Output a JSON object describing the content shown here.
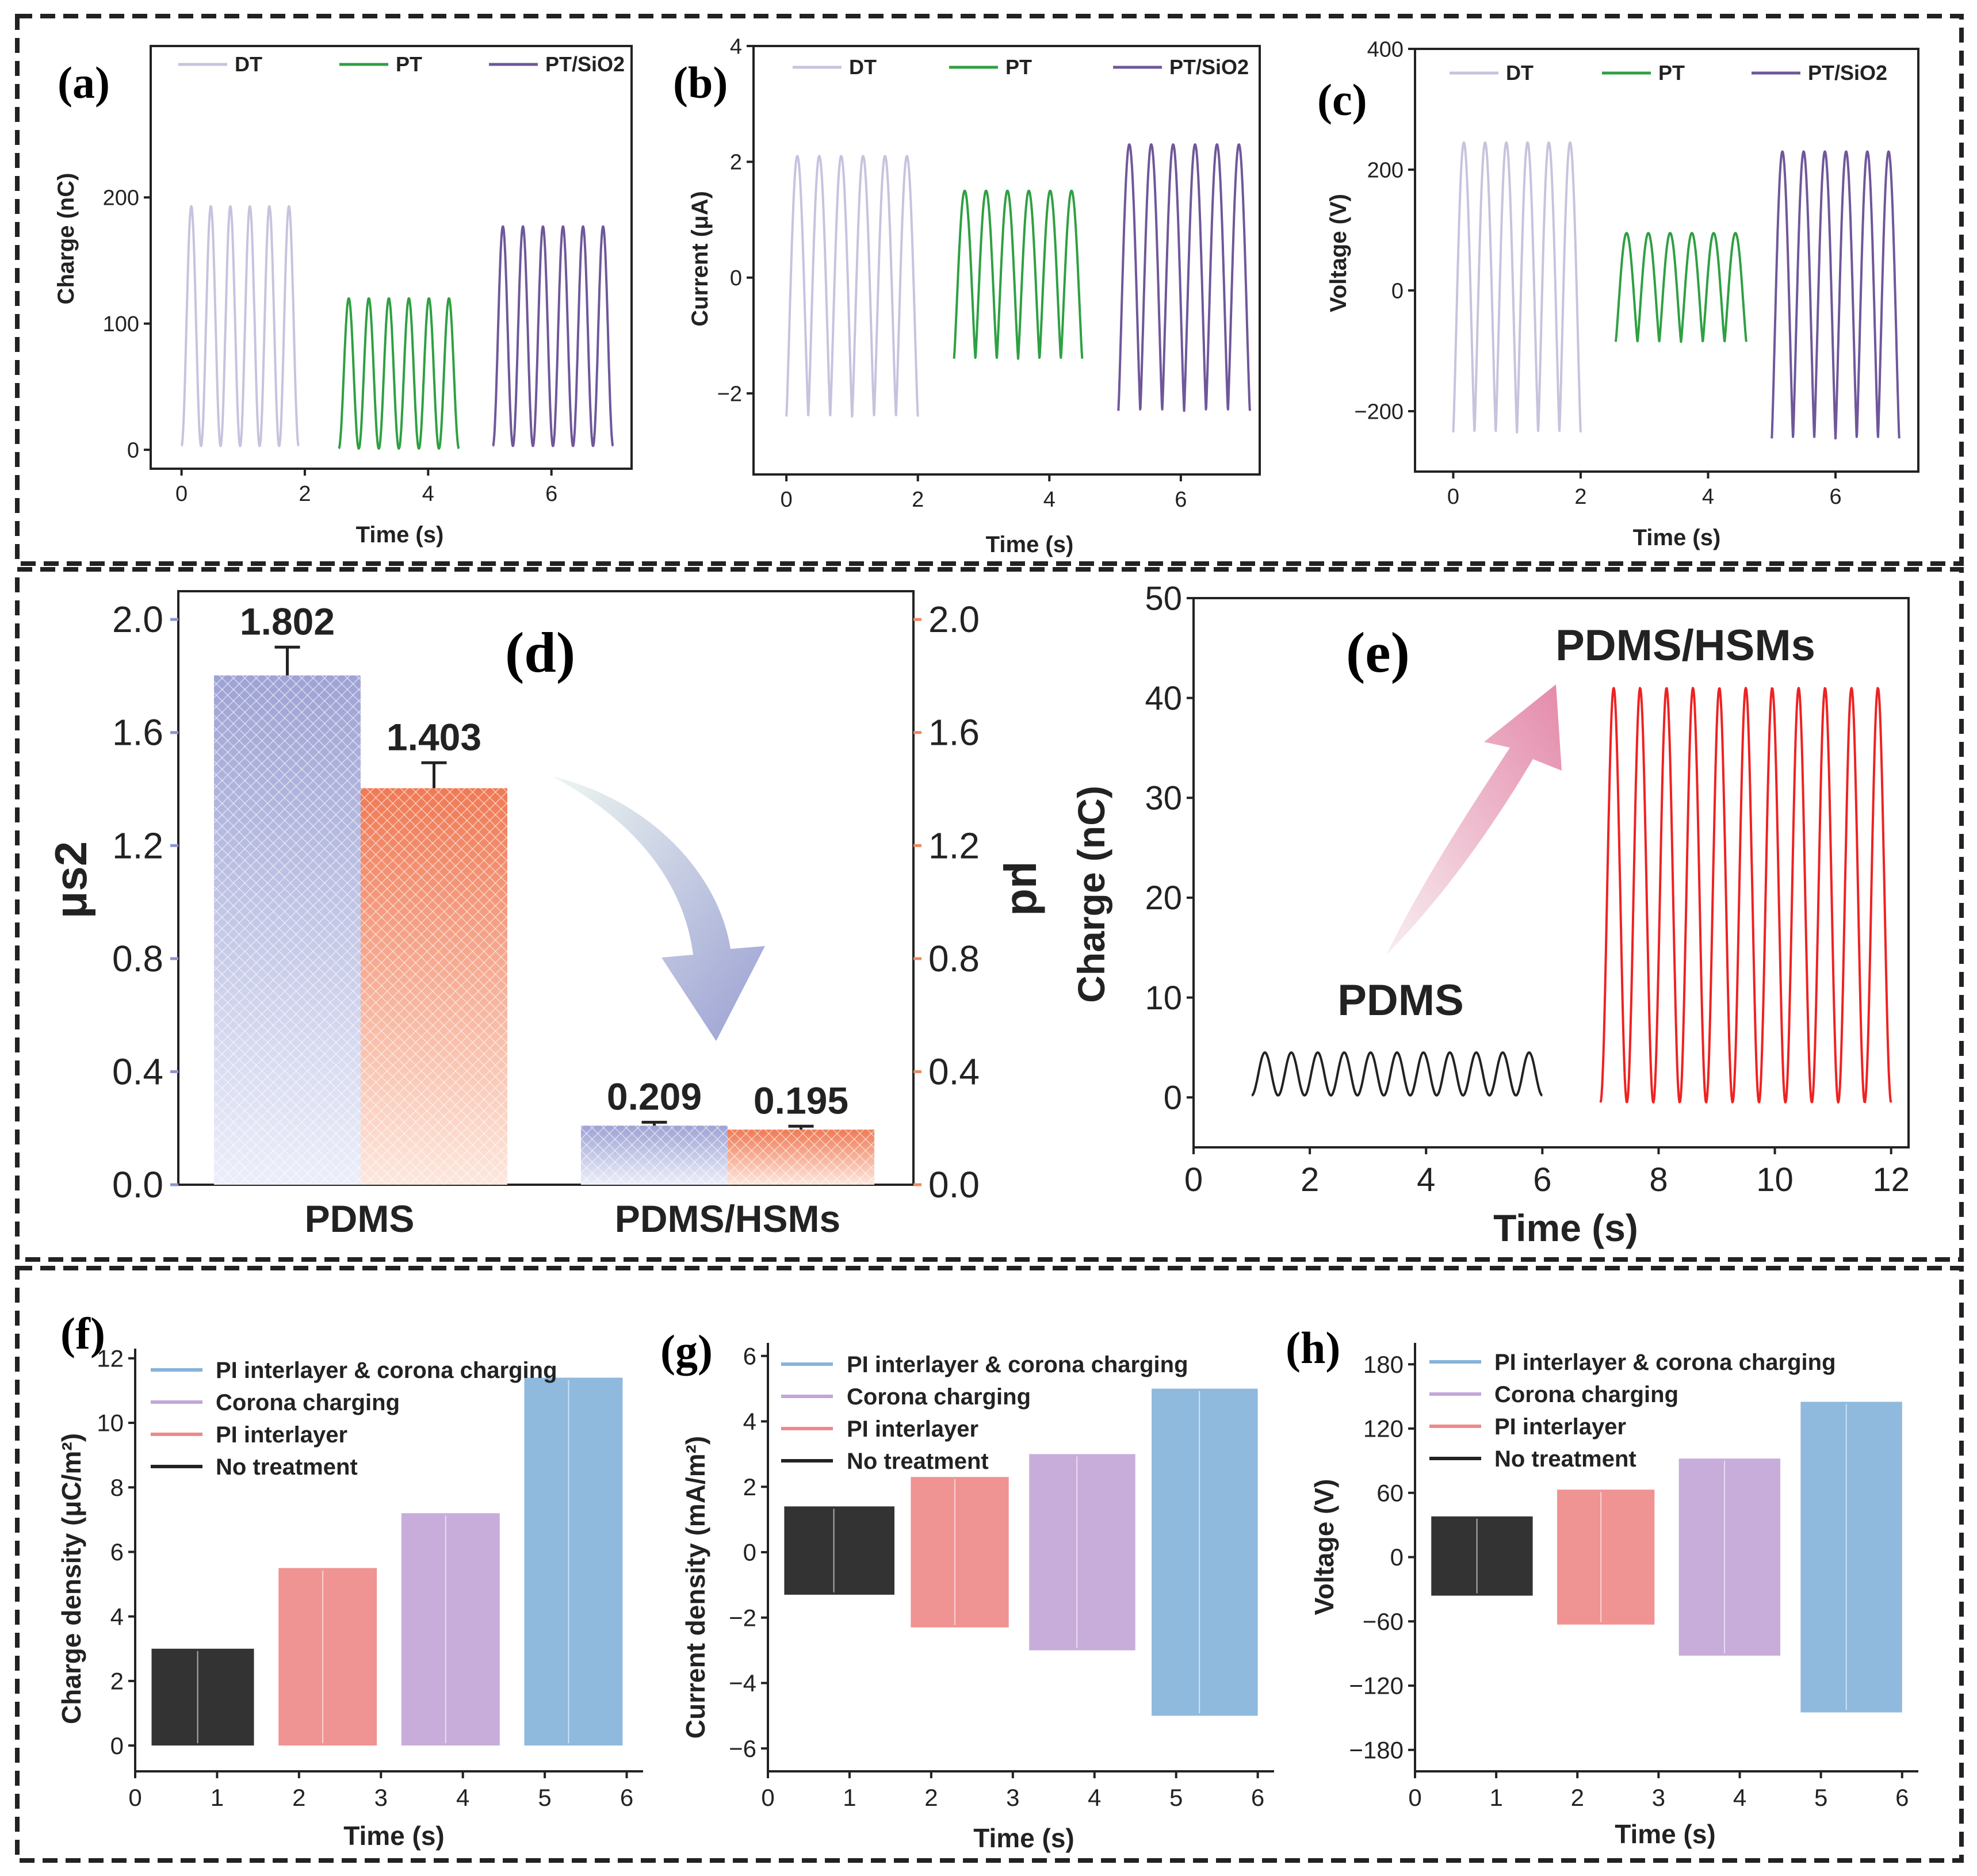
{
  "colors": {
    "dt": "#c9c2de",
    "pt": "#2fa043",
    "ptsio2": "#6f579a",
    "black": "#222222",
    "pink": "#ef8a8a",
    "lilac": "#c3a6d8",
    "blue": "#86b3da",
    "bar_blue": "#9ea3d4",
    "bar_orange": "#ef7a55",
    "axis_blue": "#8d93cf",
    "axis_orange": "#ec8a5f",
    "red": "#ee2222"
  },
  "chart_data": [
    {
      "id": "a",
      "panel_label": "(a)",
      "type": "line",
      "xlabel": "Time (s)",
      "ylabel": "Charge (nC)",
      "xlim": [
        -0.5,
        7.3
      ],
      "ylim": [
        -15,
        320
      ],
      "xticks": [
        0,
        2,
        4,
        6
      ],
      "yticks": [
        0,
        100,
        200
      ],
      "legend": [
        "DT",
        "PT",
        "PT/SiO2"
      ],
      "series": [
        {
          "name": "DT",
          "color_key": "dt",
          "t_start": 0.0,
          "t_end": 1.9,
          "cycles": 6,
          "min": 3,
          "max": 193
        },
        {
          "name": "PT",
          "color_key": "pt",
          "t_start": 2.55,
          "t_end": 4.5,
          "cycles": 6,
          "min": 1,
          "max": 120
        },
        {
          "name": "PT/SiO2",
          "color_key": "ptsio2",
          "t_start": 5.05,
          "t_end": 7.0,
          "cycles": 6,
          "min": 3,
          "max": 177
        }
      ]
    },
    {
      "id": "b",
      "panel_label": "(b)",
      "type": "line",
      "xlabel": "Time (s)",
      "ylabel": "Current (μA)",
      "xlim": [
        -0.5,
        7.2
      ],
      "ylim": [
        -3.4,
        4
      ],
      "xticks": [
        0,
        2,
        4,
        6
      ],
      "yticks": [
        -2,
        0,
        2,
        4
      ],
      "legend": [
        "DT",
        "PT",
        "PT/SiO2"
      ],
      "series": [
        {
          "name": "DT",
          "color_key": "dt",
          "t_start": 0.0,
          "t_end": 2.0,
          "cycles": 6,
          "min": -2.4,
          "max": 2.1
        },
        {
          "name": "PT",
          "color_key": "pt",
          "t_start": 2.55,
          "t_end": 4.5,
          "cycles": 6,
          "min": -1.4,
          "max": 1.5
        },
        {
          "name": "PT/SiO2",
          "color_key": "ptsio2",
          "t_start": 5.05,
          "t_end": 7.05,
          "cycles": 6,
          "min": -2.3,
          "max": 2.3
        }
      ]
    },
    {
      "id": "c",
      "panel_label": "(c)",
      "type": "line",
      "xlabel": "Time (s)",
      "ylabel": "Voltage (V)",
      "xlim": [
        -0.6,
        7.3
      ],
      "ylim": [
        -300,
        400
      ],
      "xticks": [
        0,
        2,
        4,
        6
      ],
      "yticks": [
        -200,
        0,
        200,
        400
      ],
      "legend": [
        "DT",
        "PT",
        "PT/SiO2"
      ],
      "series": [
        {
          "name": "DT",
          "color_key": "dt",
          "t_start": 0.0,
          "t_end": 2.0,
          "cycles": 6,
          "min": -235,
          "max": 245
        },
        {
          "name": "PT",
          "color_key": "pt",
          "t_start": 2.55,
          "t_end": 4.6,
          "cycles": 6,
          "min": -85,
          "max": 95
        },
        {
          "name": "PT/SiO2",
          "color_key": "ptsio2",
          "t_start": 5.0,
          "t_end": 7.0,
          "cycles": 6,
          "min": -245,
          "max": 230
        }
      ]
    },
    {
      "id": "d",
      "panel_label": "(d)",
      "type": "bar",
      "categories": [
        "PDMS",
        "PDMS/HSMs"
      ],
      "ylabel_left": "μs2",
      "ylabel_right": "μd",
      "ylim": [
        0,
        2.1
      ],
      "yticks": [
        "0.0",
        "0.4",
        "0.8",
        "1.2",
        "1.6",
        "2.0"
      ],
      "series": [
        {
          "name": "μs2",
          "color_key": "bar_blue",
          "values": [
            1.802,
            0.209
          ],
          "errors": [
            0.1,
            0.012
          ],
          "labels": [
            "1.802",
            "0.209"
          ]
        },
        {
          "name": "μd",
          "color_key": "bar_orange",
          "values": [
            1.403,
            0.195
          ],
          "errors": [
            0.09,
            0.012
          ],
          "labels": [
            "1.403",
            "0.195"
          ]
        }
      ]
    },
    {
      "id": "e",
      "panel_label": "(e)",
      "type": "line",
      "xlabel": "Time (s)",
      "ylabel": "Charge (nC)",
      "xlim": [
        0,
        12.3
      ],
      "ylim": [
        -5,
        50
      ],
      "xticks": [
        0,
        2,
        4,
        6,
        8,
        10,
        12
      ],
      "yticks": [
        0,
        10,
        20,
        30,
        40,
        50
      ],
      "annotations": [
        "PDMS",
        "PDMS/HSMs"
      ],
      "series": [
        {
          "name": "PDMS",
          "color_key": "black",
          "t_start": 1.0,
          "t_end": 6.0,
          "cycles": 11,
          "min": 0.2,
          "max": 4.5
        },
        {
          "name": "PDMS/HSMs",
          "color_key": "red",
          "t_start": 7.0,
          "t_end": 12.0,
          "cycles": 11,
          "min": -0.5,
          "max": 41
        }
      ]
    },
    {
      "id": "f",
      "panel_label": "(f)",
      "type": "area",
      "xlabel": "Time (s)",
      "ylabel": "Charge density (μC/m²)",
      "xlim": [
        0,
        6.2
      ],
      "ylim": [
        -0.8,
        12.3
      ],
      "xticks": [
        0,
        1,
        2,
        3,
        4,
        5,
        6
      ],
      "yticks": [
        0,
        2,
        4,
        6,
        8,
        10,
        12
      ],
      "legend": [
        "PI interlayer & corona charging",
        "Corona charging",
        "PI interlayer",
        "No treatment"
      ],
      "series": [
        {
          "name": "No treatment",
          "color_key": "black",
          "t_start": 0.2,
          "t_end": 1.45,
          "min": 0,
          "max": 3.0
        },
        {
          "name": "PI interlayer",
          "color_key": "pink",
          "t_start": 1.75,
          "t_end": 2.95,
          "min": 0,
          "max": 5.5
        },
        {
          "name": "Corona charging",
          "color_key": "lilac",
          "t_start": 3.25,
          "t_end": 4.45,
          "min": 0,
          "max": 7.2
        },
        {
          "name": "PI interlayer & corona charging",
          "color_key": "blue",
          "t_start": 4.75,
          "t_end": 5.95,
          "min": 0,
          "max": 11.4
        }
      ]
    },
    {
      "id": "g",
      "panel_label": "(g)",
      "type": "area",
      "xlabel": "Time (s)",
      "ylabel": "Current density (mA/m²)",
      "xlim": [
        0,
        6.2
      ],
      "ylim": [
        -6.7,
        6.4
      ],
      "xticks": [
        0,
        1,
        2,
        3,
        4,
        5,
        6
      ],
      "yticks": [
        -6,
        -4,
        -2,
        0,
        2,
        4,
        6
      ],
      "legend": [
        "PI interlayer & corona charging",
        "Corona charging",
        "PI interlayer",
        "No treatment"
      ],
      "series": [
        {
          "name": "No treatment",
          "color_key": "black",
          "t_start": 0.2,
          "t_end": 1.55,
          "min": -1.3,
          "max": 1.4
        },
        {
          "name": "PI interlayer",
          "color_key": "pink",
          "t_start": 1.75,
          "t_end": 2.95,
          "min": -2.3,
          "max": 2.3
        },
        {
          "name": "Corona charging",
          "color_key": "lilac",
          "t_start": 3.2,
          "t_end": 4.5,
          "min": -3.0,
          "max": 3.0
        },
        {
          "name": "PI interlayer & corona charging",
          "color_key": "blue",
          "t_start": 4.7,
          "t_end": 6.0,
          "min": -5.0,
          "max": 5.0
        }
      ]
    },
    {
      "id": "h",
      "panel_label": "(h)",
      "type": "area",
      "xlabel": "Time (s)",
      "ylabel": "Voltage (V)",
      "xlim": [
        0,
        6.2
      ],
      "ylim": [
        -200,
        200
      ],
      "xticks": [
        0,
        1,
        2,
        3,
        4,
        5,
        6
      ],
      "yticks": [
        -180,
        -120,
        -60,
        0,
        60,
        120,
        180
      ],
      "legend": [
        "PI interlayer & corona charging",
        "Corona charging",
        "PI interlayer",
        "No treatment"
      ],
      "series": [
        {
          "name": "No treatment",
          "color_key": "black",
          "t_start": 0.2,
          "t_end": 1.45,
          "min": -36,
          "max": 38
        },
        {
          "name": "PI interlayer",
          "color_key": "pink",
          "t_start": 1.75,
          "t_end": 2.95,
          "min": -63,
          "max": 63
        },
        {
          "name": "Corona charging",
          "color_key": "lilac",
          "t_start": 3.25,
          "t_end": 4.5,
          "min": -92,
          "max": 92
        },
        {
          "name": "PI interlayer & corona charging",
          "color_key": "blue",
          "t_start": 4.75,
          "t_end": 6.0,
          "min": -145,
          "max": 145
        }
      ]
    }
  ]
}
